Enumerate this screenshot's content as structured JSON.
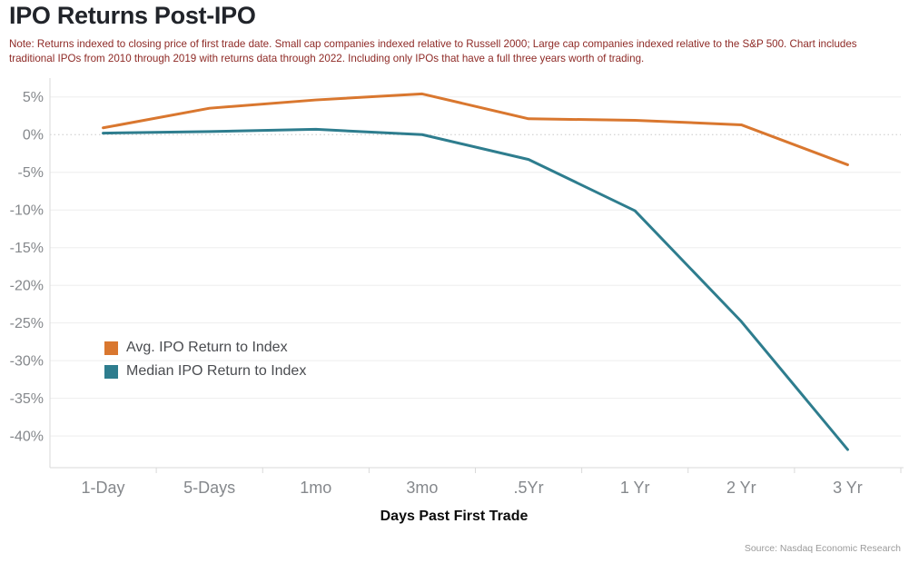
{
  "title": "IPO Returns Post-IPO",
  "note": "Note: Returns indexed to closing price of first trade date. Small cap companies indexed relative to Russell 2000; Large cap companies indexed relative to the S&P 500. Chart includes traditional IPOs from 2010 through 2019 with returns data through 2022. Including only IPOs that have a full three years worth of trading.",
  "source": "Source: Nasdaq Economic Research",
  "chart_data": {
    "type": "line",
    "title": "IPO Returns Post-IPO",
    "categories": [
      "1-Day",
      "5-Days",
      "1mo",
      "3mo",
      ".5Yr",
      "1 Yr",
      "2 Yr",
      "3 Yr"
    ],
    "series": [
      {
        "name": "Avg. IPO Return to Index",
        "color": "#d9772f",
        "values": [
          0.9,
          3.5,
          4.6,
          5.4,
          2.1,
          1.9,
          1.3,
          -4.0
        ]
      },
      {
        "name": "Median IPO Return to Index",
        "color": "#2e7d8e",
        "values": [
          0.2,
          0.4,
          0.7,
          0.0,
          -3.3,
          -10.1,
          -24.8,
          -41.8
        ]
      }
    ],
    "xlabel": "Days Past First Trade",
    "ylabel": "",
    "y_ticks": [
      5,
      0,
      -5,
      -10,
      -15,
      -20,
      -25,
      -30,
      -35,
      -40
    ],
    "y_tick_format": "percent",
    "ylim": [
      -44.2,
      7.5
    ],
    "grid": true,
    "zero_line": "dotted",
    "legend_position": "inside-left"
  },
  "colors": {
    "title": "#21242a",
    "note": "#8e2a26",
    "axis_label": "#85888c",
    "legend_text": "#4a4c50",
    "xlabel_text": "#0c0c0c",
    "source_text": "#9a9a9a",
    "grid": "#eeeeee",
    "axis_line": "#d9d9d9",
    "zero_line": "#c8c8c8"
  }
}
